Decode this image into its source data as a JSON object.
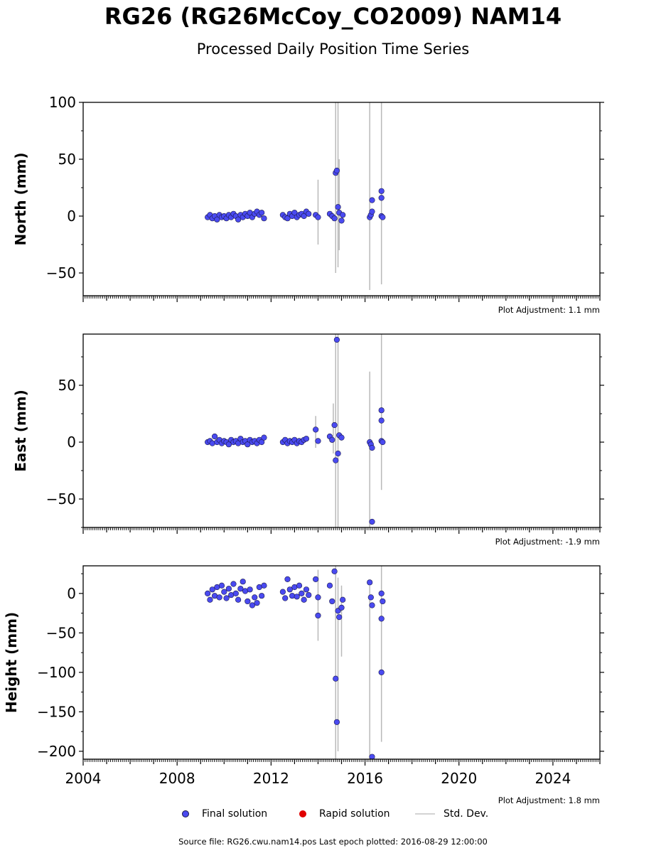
{
  "title": "RG26 (RG26McCoy_CO2009) NAM14",
  "subtitle": "Processed Daily Position Time Series",
  "legend": {
    "final": "Final solution",
    "rapid": "Rapid solution",
    "std": "Std. Dev.",
    "final_color": "#4a4af0",
    "rapid_color": "#e00000",
    "std_color": "#d3d3d3"
  },
  "footer": "Source file: RG26.cwu.nam14.pos  Last epoch plotted: 2016-08-29 12:00:00",
  "chart_data": [
    {
      "type": "scatter",
      "ylabel": "North (mm)",
      "adjustment": "Plot Adjustment: 1.1 mm",
      "xlim": [
        2004,
        2026
      ],
      "ylim": [
        -70,
        100
      ],
      "yticks": [
        -50,
        0,
        50,
        100
      ],
      "ytick_labels": [
        "−50",
        "0",
        "50",
        "100"
      ],
      "xticks": [
        2004,
        2008,
        2012,
        2016,
        2020,
        2024
      ],
      "xtick_labels": [],
      "series": [
        {
          "name": "Final solution",
          "points": [
            [
              2009.3,
              -1
            ],
            [
              2009.4,
              1
            ],
            [
              2009.5,
              -2
            ],
            [
              2009.6,
              0
            ],
            [
              2009.7,
              -3
            ],
            [
              2009.8,
              1
            ],
            [
              2009.9,
              -1
            ],
            [
              2010.0,
              0
            ],
            [
              2010.1,
              -2
            ],
            [
              2010.2,
              1
            ],
            [
              2010.3,
              -1
            ],
            [
              2010.4,
              2
            ],
            [
              2010.5,
              0
            ],
            [
              2010.6,
              -3
            ],
            [
              2010.7,
              1
            ],
            [
              2010.8,
              -1
            ],
            [
              2010.9,
              2
            ],
            [
              2011.0,
              0
            ],
            [
              2011.1,
              3
            ],
            [
              2011.2,
              -1
            ],
            [
              2011.3,
              2
            ],
            [
              2011.4,
              4
            ],
            [
              2011.5,
              1
            ],
            [
              2011.6,
              3
            ],
            [
              2011.7,
              -2
            ],
            [
              2012.5,
              1
            ],
            [
              2012.6,
              -1
            ],
            [
              2012.7,
              -2
            ],
            [
              2012.8,
              2
            ],
            [
              2012.9,
              0
            ],
            [
              2013.0,
              3
            ],
            [
              2013.1,
              -1
            ],
            [
              2013.2,
              1
            ],
            [
              2013.3,
              2
            ],
            [
              2013.4,
              0
            ],
            [
              2013.5,
              4
            ],
            [
              2013.6,
              2
            ],
            [
              2013.9,
              1
            ],
            [
              2014.0,
              -1
            ],
            [
              2014.5,
              2
            ],
            [
              2014.6,
              0
            ],
            [
              2014.7,
              -2
            ],
            [
              2014.75,
              38
            ],
            [
              2014.8,
              40
            ],
            [
              2014.85,
              8
            ],
            [
              2014.9,
              3
            ],
            [
              2015.0,
              -4
            ],
            [
              2015.05,
              1
            ],
            [
              2016.2,
              -1
            ],
            [
              2016.25,
              1
            ],
            [
              2016.3,
              14
            ],
            [
              2016.3,
              4
            ],
            [
              2016.7,
              22
            ],
            [
              2016.7,
              16
            ],
            [
              2016.7,
              0
            ],
            [
              2016.75,
              -1
            ]
          ]
        },
        {
          "name": "Std. Dev.",
          "segments": [
            [
              2014.75,
              -50,
              100
            ],
            [
              2014.85,
              -45,
              100
            ],
            [
              2016.2,
              -65,
              100
            ],
            [
              2016.7,
              -60,
              100
            ],
            [
              2014.0,
              -25,
              32
            ],
            [
              2014.9,
              -30,
              50
            ]
          ]
        }
      ]
    },
    {
      "type": "scatter",
      "ylabel": "East (mm)",
      "adjustment": "Plot Adjustment: -1.9 mm",
      "xlim": [
        2004,
        2026
      ],
      "ylim": [
        -75,
        95
      ],
      "yticks": [
        -50,
        0,
        50
      ],
      "ytick_labels": [
        "−50",
        "0",
        "50"
      ],
      "xticks": [
        2004,
        2008,
        2012,
        2016,
        2020,
        2024
      ],
      "xtick_labels": [],
      "series": [
        {
          "name": "Final solution",
          "points": [
            [
              2009.3,
              0
            ],
            [
              2009.4,
              1
            ],
            [
              2009.5,
              -1
            ],
            [
              2009.6,
              5
            ],
            [
              2009.7,
              0
            ],
            [
              2009.8,
              2
            ],
            [
              2009.9,
              -1
            ],
            [
              2010.0,
              1
            ],
            [
              2010.1,
              0
            ],
            [
              2010.2,
              -2
            ],
            [
              2010.3,
              2
            ],
            [
              2010.4,
              0
            ],
            [
              2010.5,
              1
            ],
            [
              2010.6,
              -1
            ],
            [
              2010.7,
              3
            ],
            [
              2010.8,
              0
            ],
            [
              2010.9,
              1
            ],
            [
              2011.0,
              -2
            ],
            [
              2011.1,
              2
            ],
            [
              2011.2,
              0
            ],
            [
              2011.3,
              1
            ],
            [
              2011.4,
              -1
            ],
            [
              2011.5,
              2
            ],
            [
              2011.6,
              0
            ],
            [
              2011.7,
              4
            ],
            [
              2012.5,
              0
            ],
            [
              2012.6,
              2
            ],
            [
              2012.7,
              -1
            ],
            [
              2012.8,
              1
            ],
            [
              2012.9,
              0
            ],
            [
              2013.0,
              2
            ],
            [
              2013.1,
              -1
            ],
            [
              2013.2,
              1
            ],
            [
              2013.3,
              0
            ],
            [
              2013.4,
              2
            ],
            [
              2013.5,
              3
            ],
            [
              2013.9,
              11
            ],
            [
              2014.0,
              1
            ],
            [
              2014.5,
              5
            ],
            [
              2014.6,
              2
            ],
            [
              2014.7,
              15
            ],
            [
              2014.75,
              -16
            ],
            [
              2014.8,
              90
            ],
            [
              2014.85,
              -10
            ],
            [
              2014.9,
              6
            ],
            [
              2015.0,
              4
            ],
            [
              2016.2,
              0
            ],
            [
              2016.25,
              -2
            ],
            [
              2016.3,
              -70
            ],
            [
              2016.3,
              -5
            ],
            [
              2016.7,
              28
            ],
            [
              2016.7,
              19
            ],
            [
              2016.7,
              1
            ],
            [
              2016.75,
              0
            ]
          ]
        },
        {
          "name": "Std. Dev.",
          "segments": [
            [
              2014.75,
              -75,
              95
            ],
            [
              2014.85,
              -75,
              95
            ],
            [
              2016.2,
              -75,
              62
            ],
            [
              2016.7,
              -42,
              95
            ],
            [
              2013.9,
              -5,
              23
            ],
            [
              2014.65,
              -10,
              34
            ]
          ]
        }
      ]
    },
    {
      "type": "scatter",
      "ylabel": "Height (mm)",
      "adjustment": "Plot Adjustment: 1.8 mm",
      "xlim": [
        2004,
        2026
      ],
      "ylim": [
        -210,
        35
      ],
      "yticks": [
        -200,
        -150,
        -100,
        -50,
        0
      ],
      "ytick_labels": [
        "−200",
        "−150",
        "−100",
        "−50",
        "0"
      ],
      "xticks": [
        2004,
        2008,
        2012,
        2016,
        2020,
        2024
      ],
      "xtick_labels": [
        "2004",
        "2008",
        "2012",
        "2016",
        "2020",
        "2024"
      ],
      "series": [
        {
          "name": "Final solution",
          "points": [
            [
              2009.3,
              0
            ],
            [
              2009.4,
              -8
            ],
            [
              2009.5,
              5
            ],
            [
              2009.6,
              -3
            ],
            [
              2009.7,
              8
            ],
            [
              2009.8,
              -5
            ],
            [
              2009.9,
              10
            ],
            [
              2010.0,
              2
            ],
            [
              2010.1,
              -6
            ],
            [
              2010.2,
              6
            ],
            [
              2010.3,
              -2
            ],
            [
              2010.4,
              12
            ],
            [
              2010.5,
              0
            ],
            [
              2010.6,
              -8
            ],
            [
              2010.7,
              6
            ],
            [
              2010.8,
              15
            ],
            [
              2010.9,
              3
            ],
            [
              2011.0,
              -10
            ],
            [
              2011.1,
              5
            ],
            [
              2011.2,
              -15
            ],
            [
              2011.3,
              -5
            ],
            [
              2011.4,
              -12
            ],
            [
              2011.5,
              8
            ],
            [
              2011.6,
              -3
            ],
            [
              2011.7,
              10
            ],
            [
              2012.5,
              2
            ],
            [
              2012.6,
              -6
            ],
            [
              2012.7,
              18
            ],
            [
              2012.8,
              5
            ],
            [
              2012.9,
              -3
            ],
            [
              2013.0,
              8
            ],
            [
              2013.1,
              -4
            ],
            [
              2013.2,
              10
            ],
            [
              2013.3,
              0
            ],
            [
              2013.4,
              -8
            ],
            [
              2013.5,
              5
            ],
            [
              2013.6,
              -2
            ],
            [
              2013.9,
              18
            ],
            [
              2014.0,
              -28
            ],
            [
              2014.0,
              -5
            ],
            [
              2014.5,
              10
            ],
            [
              2014.6,
              -10
            ],
            [
              2014.7,
              28
            ],
            [
              2014.75,
              -108
            ],
            [
              2014.8,
              -163
            ],
            [
              2014.85,
              -22
            ],
            [
              2014.9,
              -30
            ],
            [
              2015.0,
              -18
            ],
            [
              2015.05,
              -8
            ],
            [
              2016.2,
              14
            ],
            [
              2016.25,
              -5
            ],
            [
              2016.3,
              -207
            ],
            [
              2016.3,
              -15
            ],
            [
              2016.7,
              -100
            ],
            [
              2016.7,
              -32
            ],
            [
              2016.7,
              0
            ],
            [
              2016.75,
              -10
            ]
          ]
        },
        {
          "name": "Std. Dev.",
          "segments": [
            [
              2014.75,
              -210,
              35
            ],
            [
              2014.85,
              -200,
              20
            ],
            [
              2016.2,
              -210,
              10
            ],
            [
              2016.7,
              -188,
              35
            ],
            [
              2014.0,
              -60,
              30
            ],
            [
              2015.0,
              -80,
              10
            ]
          ]
        }
      ]
    }
  ]
}
